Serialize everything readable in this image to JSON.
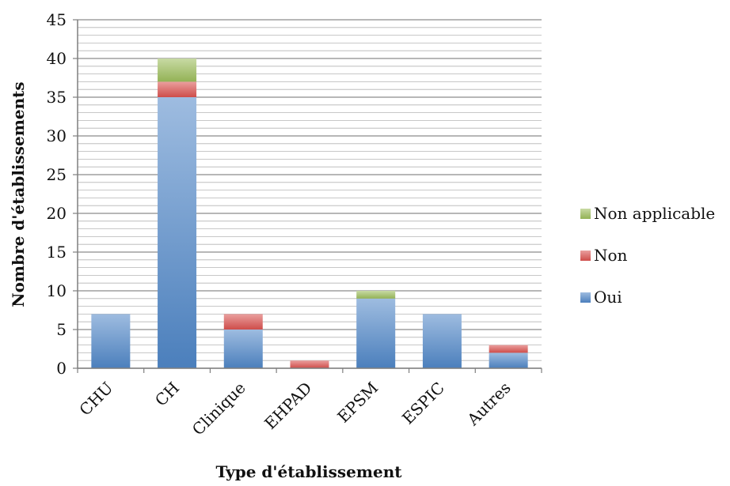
{
  "chart_data": {
    "type": "bar",
    "stacked": true,
    "categories": [
      "CHU",
      "CH",
      "Clinique",
      "EHPAD",
      "EPSM",
      "ESPIC",
      "Autres"
    ],
    "series": [
      {
        "name": "Oui",
        "values": [
          7,
          35,
          5,
          0,
          9,
          7,
          2
        ],
        "color": "#4f86c6"
      },
      {
        "name": "Non",
        "values": [
          0,
          2,
          2,
          1,
          0,
          0,
          1
        ],
        "color": "#d9514e"
      },
      {
        "name": "Non applicable",
        "values": [
          0,
          3,
          0,
          0,
          1,
          0,
          0
        ],
        "color": "#9bbb59"
      }
    ],
    "title": "",
    "xlabel": "Type d'établissement",
    "ylabel": "Nombre d'établissements",
    "ylim": [
      0,
      45
    ],
    "yticks": [
      0,
      5,
      10,
      15,
      20,
      25,
      30,
      35,
      40,
      45
    ],
    "grid": true,
    "legend_position": "right"
  }
}
